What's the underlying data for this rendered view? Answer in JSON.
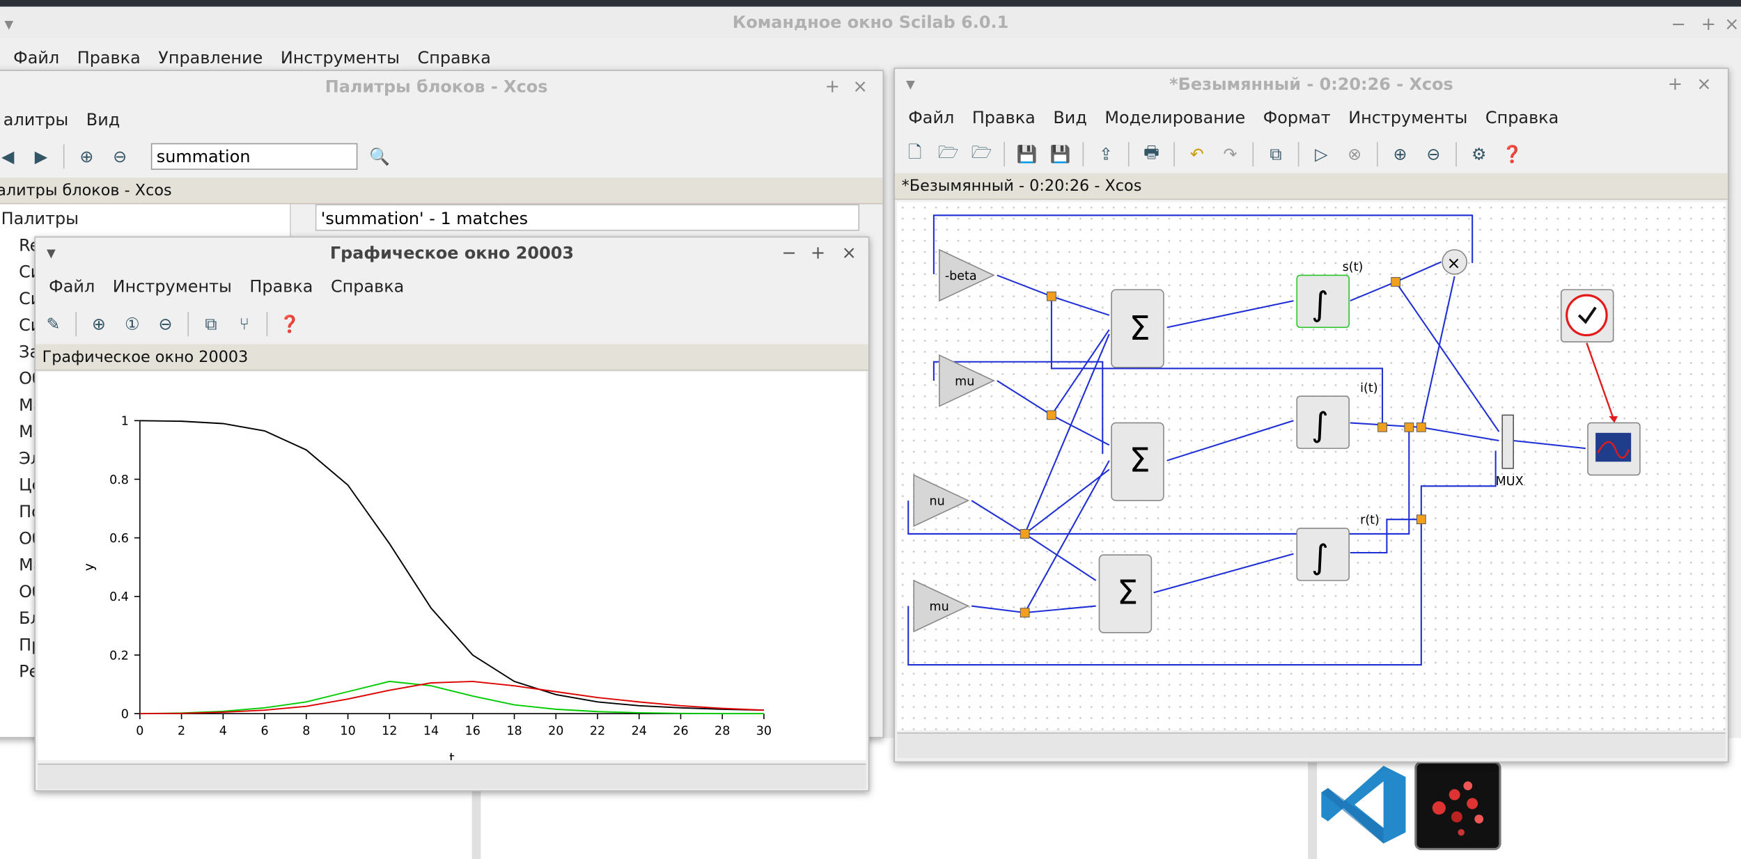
{
  "console": {
    "title": "Командное окно Scilab 6.0.1",
    "menu": [
      "Файл",
      "Правка",
      "Управление",
      "Инструменты",
      "Справка"
    ]
  },
  "palette": {
    "title": "Палитры блоков - Xcos",
    "menu": [
      "алитры",
      "Вид"
    ],
    "search_value": "summation",
    "strip": "алитры блоков - Xcos",
    "tree_root": "Палитры",
    "tree_items": [
      "Re",
      "Си",
      "Си",
      "Си",
      "За",
      "Об",
      "Ма",
      "Ма",
      "Эл",
      "Це",
      "По",
      "Об",
      "Ма",
      "Об",
      "Бл",
      "Пр",
      "Ре"
    ],
    "results": "'summation' - 1 matches"
  },
  "graphic": {
    "title": "Графическое окно 20003",
    "menu": [
      "Файл",
      "Инструменты",
      "Правка",
      "Справка"
    ],
    "strip": "Графическое окно 20003"
  },
  "xcos": {
    "title": "*Безымянный - 0:20:26 - Xcos",
    "menu": [
      "Файл",
      "Правка",
      "Вид",
      "Моделирование",
      "Формат",
      "Инструменты",
      "Справка"
    ],
    "strip": "*Безымянный - 0:20:26 - Xcos",
    "blocks": {
      "beta": "-beta",
      "mu1": "mu",
      "nu": "nu",
      "mu2": "mu",
      "sum": "Σ",
      "st": "s(t)",
      "it": "i(t)",
      "rt": "r(t)",
      "mux": "MUX",
      "int": "∫",
      "prod": "×"
    }
  },
  "chart_data": {
    "type": "line",
    "title": "",
    "xlabel": "t",
    "ylabel": "y",
    "xlim": [
      0,
      30
    ],
    "ylim": [
      0,
      1
    ],
    "x_ticks": [
      "0",
      "2",
      "4",
      "6",
      "8",
      "10",
      "12",
      "14",
      "16",
      "18",
      "20",
      "22",
      "24",
      "26",
      "28",
      "30"
    ],
    "y_ticks": [
      "0",
      "0.2",
      "0.4",
      "0.6",
      "0.8",
      "1"
    ],
    "x": [
      0,
      2,
      4,
      6,
      8,
      10,
      12,
      14,
      16,
      18,
      20,
      22,
      24,
      26,
      28,
      30
    ],
    "series": [
      {
        "color": "#000000",
        "values": [
          1.0,
          0.998,
          0.99,
          0.965,
          0.9,
          0.78,
          0.58,
          0.36,
          0.2,
          0.11,
          0.065,
          0.04,
          0.027,
          0.02,
          0.015,
          0.012
        ]
      },
      {
        "color": "#00cc00",
        "values": [
          0,
          0.002,
          0.008,
          0.02,
          0.04,
          0.075,
          0.11,
          0.095,
          0.06,
          0.03,
          0.015,
          0.007,
          0.003,
          0.001,
          0.0,
          0.0
        ]
      },
      {
        "color": "#dd0000",
        "values": [
          0,
          0.001,
          0.005,
          0.012,
          0.025,
          0.05,
          0.08,
          0.105,
          0.11,
          0.095,
          0.075,
          0.055,
          0.04,
          0.027,
          0.018,
          0.012
        ]
      }
    ]
  }
}
